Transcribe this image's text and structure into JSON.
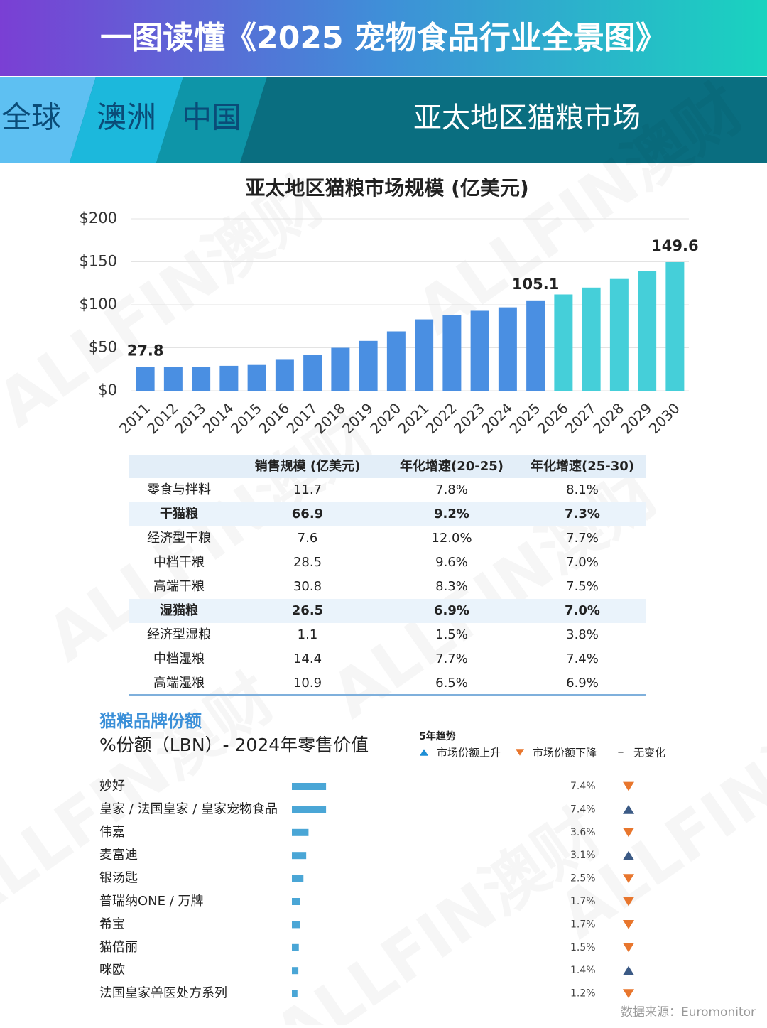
{
  "header": {
    "title": "一图读懂《2025 宠物食品行业全景图》"
  },
  "tabs": [
    "全球",
    "澳洲",
    "中国"
  ],
  "section_title": "亚太地区猫粮市场",
  "watermark": "ALLFIN澳财",
  "chart_data": [
    {
      "type": "bar",
      "title": "亚太地区猫粮市场规模 (亿美元)",
      "categories": [
        "2011",
        "2012",
        "2013",
        "2014",
        "2015",
        "2016",
        "2017",
        "2018",
        "2019",
        "2020",
        "2021",
        "2022",
        "2023",
        "2024",
        "2025",
        "2026",
        "2027",
        "2028",
        "2029",
        "2030"
      ],
      "values": [
        27.8,
        28,
        27.3,
        29,
        30,
        36,
        42,
        50,
        58,
        69,
        83,
        88,
        93,
        97,
        105.1,
        112,
        120,
        130,
        139,
        149.6
      ],
      "value_labels": [
        "27.8",
        null,
        null,
        null,
        null,
        null,
        null,
        null,
        null,
        null,
        null,
        null,
        null,
        null,
        "105.1",
        null,
        null,
        null,
        null,
        "149.6"
      ],
      "bar_colors": [
        "#4a8fe2",
        "#4a8fe2",
        "#4a8fe2",
        "#4a8fe2",
        "#4a8fe2",
        "#4a8fe2",
        "#4a8fe2",
        "#4a8fe2",
        "#4a8fe2",
        "#4a8fe2",
        "#4a8fe2",
        "#4a8fe2",
        "#4a8fe2",
        "#4a8fe2",
        "#4a8fe2",
        "#45cfd9",
        "#45cfd9",
        "#45cfd9",
        "#45cfd9",
        "#45cfd9"
      ],
      "ylim": [
        0,
        200
      ],
      "yticks": [
        {
          "value": 0,
          "label": "$0"
        },
        {
          "value": 50,
          "label": "$50"
        },
        {
          "value": 100,
          "label": "$100"
        },
        {
          "value": 150,
          "label": "$150"
        },
        {
          "value": 200,
          "label": "$200"
        }
      ],
      "grid": true
    },
    {
      "type": "hbar",
      "title": "猫粮品牌份额",
      "subtitle": "%份额（LBN）- 2024年零售价值",
      "legend_title": "5年趋势",
      "legend": [
        {
          "label": "市场份额上升",
          "trend": "up"
        },
        {
          "label": "市场份额下降",
          "trend": "down"
        },
        {
          "label": "无变化",
          "trend": "flat"
        }
      ],
      "categories": [
        "妙好",
        "皇家 / 法国皇家 / 皇家宠物食品",
        "伟嘉",
        "麦富迪",
        "银汤匙",
        "普瑞纳ONE / 万牌",
        "希宝",
        "猫倍丽",
        "咪欧",
        "法国皇家兽医处方系列"
      ],
      "values": [
        7.4,
        7.4,
        3.6,
        3.1,
        2.5,
        1.7,
        1.7,
        1.5,
        1.4,
        1.2
      ],
      "value_labels": [
        "7.4%",
        "7.4%",
        "3.6%",
        "3.1%",
        "2.5%",
        "1.7%",
        "1.7%",
        "1.5%",
        "1.4%",
        "1.2%"
      ],
      "trends": [
        "down",
        "up",
        "down",
        "up",
        "down",
        "down",
        "down",
        "down",
        "up",
        "down"
      ],
      "color": "#4aa6d6"
    }
  ],
  "table": {
    "header": [
      "销售规模 (亿美元)",
      "年化增速(20-25)",
      "年化增速(25-30)"
    ],
    "rows": [
      {
        "cells": [
          "零食与拌料",
          "11.7",
          "7.8%",
          "8.1%"
        ],
        "bold": false
      },
      {
        "cells": [
          "干猫粮",
          "66.9",
          "9.2%",
          "7.3%"
        ],
        "bold": true
      },
      {
        "cells": [
          "经济型干粮",
          "7.6",
          "12.0%",
          "7.7%"
        ],
        "bold": false
      },
      {
        "cells": [
          "中档干粮",
          "28.5",
          "9.6%",
          "7.0%"
        ],
        "bold": false
      },
      {
        "cells": [
          "高端干粮",
          "30.8",
          "8.3%",
          "7.5%"
        ],
        "bold": false
      },
      {
        "cells": [
          "湿猫粮",
          "26.5",
          "6.9%",
          "7.0%"
        ],
        "bold": true
      },
      {
        "cells": [
          "经济型湿粮",
          "1.1",
          "1.5%",
          "3.8%"
        ],
        "bold": false
      },
      {
        "cells": [
          "中档湿粮",
          "14.4",
          "7.7%",
          "7.4%"
        ],
        "bold": false
      },
      {
        "cells": [
          "高端湿粮",
          "10.9",
          "6.5%",
          "6.9%"
        ],
        "bold": false
      }
    ]
  },
  "source": "数据来源：Euromonitor"
}
